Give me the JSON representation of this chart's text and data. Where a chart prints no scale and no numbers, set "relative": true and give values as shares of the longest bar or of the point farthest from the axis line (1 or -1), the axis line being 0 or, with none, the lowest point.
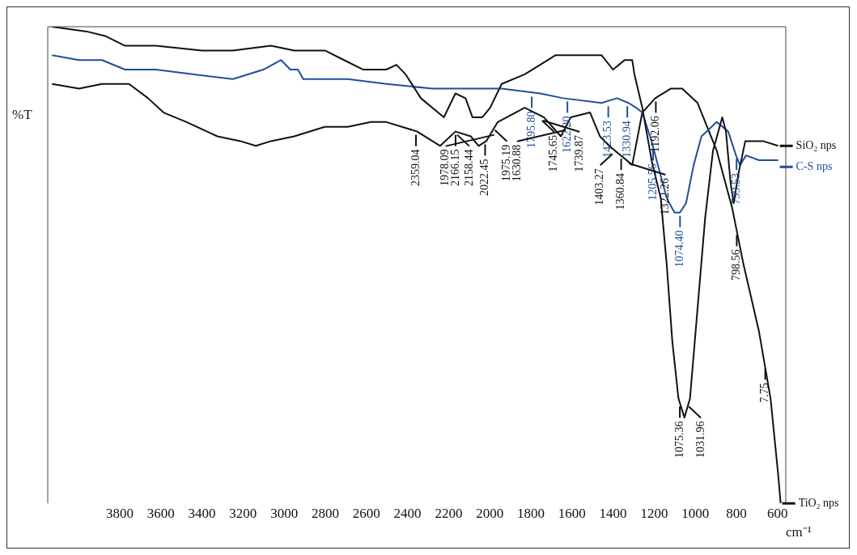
{
  "chart_data": {
    "type": "line",
    "relative": true,
    "xlabel": "cm⁻¹",
    "ylabel": "%T",
    "xlim": [
      4150,
      560
    ],
    "xticks": [
      3800,
      3600,
      3400,
      3200,
      3000,
      2800,
      2600,
      2400,
      2200,
      2000,
      1800,
      1600,
      1400,
      1200,
      1000,
      800,
      600
    ],
    "grid": false,
    "legend": "right",
    "marker": "none",
    "series": [
      {
        "name": "SiO₂ nps",
        "color": "#111111",
        "x": [
          4129,
          3961,
          3867,
          3774,
          3624,
          3400,
          3250,
          3064,
          2951,
          2802,
          2709,
          2615,
          2503,
          2454,
          2409,
          2335,
          2223,
          2167,
          2118,
          2084,
          2036,
          1998,
          1942,
          1830,
          1755,
          1681,
          1587,
          1456,
          1400,
          1344,
          1307,
          1296,
          1258,
          1221,
          1213,
          1168,
          1139,
          1112,
          1082,
          1053,
          1026,
          989,
          952,
          914,
          869,
          851,
          828,
          813,
          791,
          757,
          671,
          597
        ],
        "values": [
          1.0,
          0.99,
          0.98,
          0.96,
          0.96,
          0.95,
          0.95,
          0.96,
          0.95,
          0.95,
          0.93,
          0.91,
          0.91,
          0.92,
          0.9,
          0.85,
          0.81,
          0.86,
          0.85,
          0.81,
          0.81,
          0.83,
          0.88,
          0.9,
          0.92,
          0.94,
          0.94,
          0.94,
          0.91,
          0.93,
          0.93,
          0.9,
          0.83,
          0.74,
          0.72,
          0.64,
          0.5,
          0.34,
          0.22,
          0.18,
          0.22,
          0.41,
          0.6,
          0.74,
          0.81,
          0.78,
          0.67,
          0.63,
          0.69,
          0.76,
          0.76,
          0.75
        ]
      },
      {
        "name": "C-S nps",
        "color": "#1f4f9a",
        "x": [
          4129,
          3998,
          3886,
          3774,
          3624,
          3437,
          3250,
          3101,
          3015,
          2970,
          2933,
          2907,
          2690,
          2503,
          2279,
          2129,
          1942,
          1755,
          1643,
          1456,
          1381,
          1325,
          1288,
          1258,
          1213,
          1176,
          1139,
          1101,
          1075,
          1045,
          1008,
          970,
          896,
          840,
          802,
          783,
          753,
          690,
          597
        ],
        "values": [
          0.94,
          0.93,
          0.93,
          0.91,
          0.91,
          0.9,
          0.89,
          0.91,
          0.93,
          0.91,
          0.91,
          0.89,
          0.89,
          0.88,
          0.87,
          0.87,
          0.87,
          0.86,
          0.85,
          0.84,
          0.85,
          0.84,
          0.83,
          0.82,
          0.76,
          0.7,
          0.64,
          0.61,
          0.61,
          0.63,
          0.71,
          0.77,
          0.8,
          0.78,
          0.73,
          0.71,
          0.73,
          0.72,
          0.72
        ]
      },
      {
        "name": "TiO₂ nps",
        "color": "#111111",
        "x": [
          4129,
          3998,
          3886,
          3755,
          3662,
          3587,
          3475,
          3325,
          3213,
          3138,
          3064,
          2951,
          2802,
          2690,
          2578,
          2503,
          2353,
          2241,
          2167,
          2092,
          2054,
          2017,
          1961,
          1830,
          1737,
          1654,
          1606,
          1512,
          1464,
          1419,
          1363,
          1307,
          1258,
          1195,
          1120,
          1064,
          989,
          896,
          821,
          765,
          690,
          634,
          597,
          585
        ],
        "values": [
          0.88,
          0.87,
          0.88,
          0.88,
          0.85,
          0.82,
          0.8,
          0.77,
          0.76,
          0.75,
          0.76,
          0.77,
          0.79,
          0.79,
          0.8,
          0.8,
          0.78,
          0.75,
          0.78,
          0.77,
          0.75,
          0.76,
          0.8,
          0.83,
          0.81,
          0.77,
          0.81,
          0.82,
          0.77,
          0.75,
          0.73,
          0.71,
          0.82,
          0.85,
          0.87,
          0.87,
          0.84,
          0.74,
          0.62,
          0.5,
          0.36,
          0.22,
          0.06,
          0.0
        ]
      }
    ],
    "annotations": [
      {
        "text": "1795.80",
        "x": 1795.8,
        "y": 0.86
      },
      {
        "text": "1622.20",
        "x": 1622.2,
        "y": 0.85
      },
      {
        "text": "1423.53",
        "x": 1423.5,
        "y": 0.84
      },
      {
        "text": "1330.94",
        "x": 1330.9,
        "y": 0.84
      },
      {
        "text": "1205.56",
        "x": 1205.6,
        "y": 0.75
      },
      {
        "text": "1074.40",
        "x": 1074.4,
        "y": 0.61
      },
      {
        "text": "799.53",
        "x": 799.5,
        "y": 0.73
      },
      {
        "text": "2359.04",
        "x": 2359,
        "y": 0.78
      },
      {
        "text": "2166.15",
        "x": 2166.2,
        "y": 0.78
      },
      {
        "text": "2022.45",
        "x": 2022.5,
        "y": 0.76
      },
      {
        "text": "1975.19",
        "x": 1975.2,
        "y": 0.79
      },
      {
        "text": "1739.87",
        "x": 1739.9,
        "y": 0.81
      },
      {
        "text": "1360.84",
        "x": 1360.8,
        "y": 0.73
      },
      {
        "text": "1192.06",
        "x": 1192.1,
        "y": 0.85
      },
      {
        "text": "798.56",
        "x": 798.6,
        "y": 0.57
      },
      {
        "text": "2158.44",
        "x": 2158.4,
        "y": 0.78
      },
      {
        "text": "1978.09",
        "x": 1978.1,
        "y": 0.78
      },
      {
        "text": "1745.65",
        "x": 1745.7,
        "y": 0.81
      },
      {
        "text": "1630.88",
        "x": 1630.9,
        "y": 0.79
      },
      {
        "text": "1403.27",
        "x": 1403.3,
        "y": 0.74
      },
      {
        "text": "1322.26",
        "x": 1322.3,
        "y": 0.72
      },
      {
        "text": "1075.36",
        "x": 1075.4,
        "y": 0.21
      },
      {
        "text": "1031.96",
        "x": 1032,
        "y": 0.21
      },
      {
        "text": "7.75",
        "x": 660,
        "y": 0.29
      }
    ]
  }
}
